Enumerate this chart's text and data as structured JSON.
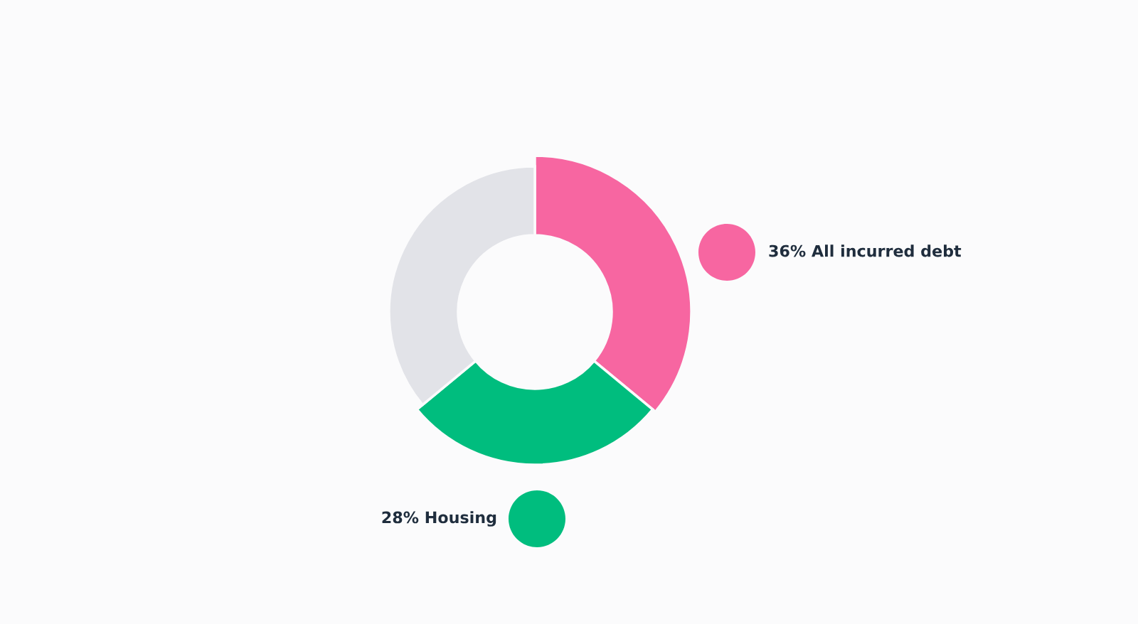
{
  "chart_data": {
    "type": "donut",
    "categories": [
      "All incurred debt",
      "Housing",
      null
    ],
    "values": [
      36,
      28,
      36
    ],
    "colors": [
      "#f766a1",
      "#00bd7e",
      "#e2e3e8"
    ],
    "value_labels": [
      "36%",
      "28%",
      null
    ]
  }
}
